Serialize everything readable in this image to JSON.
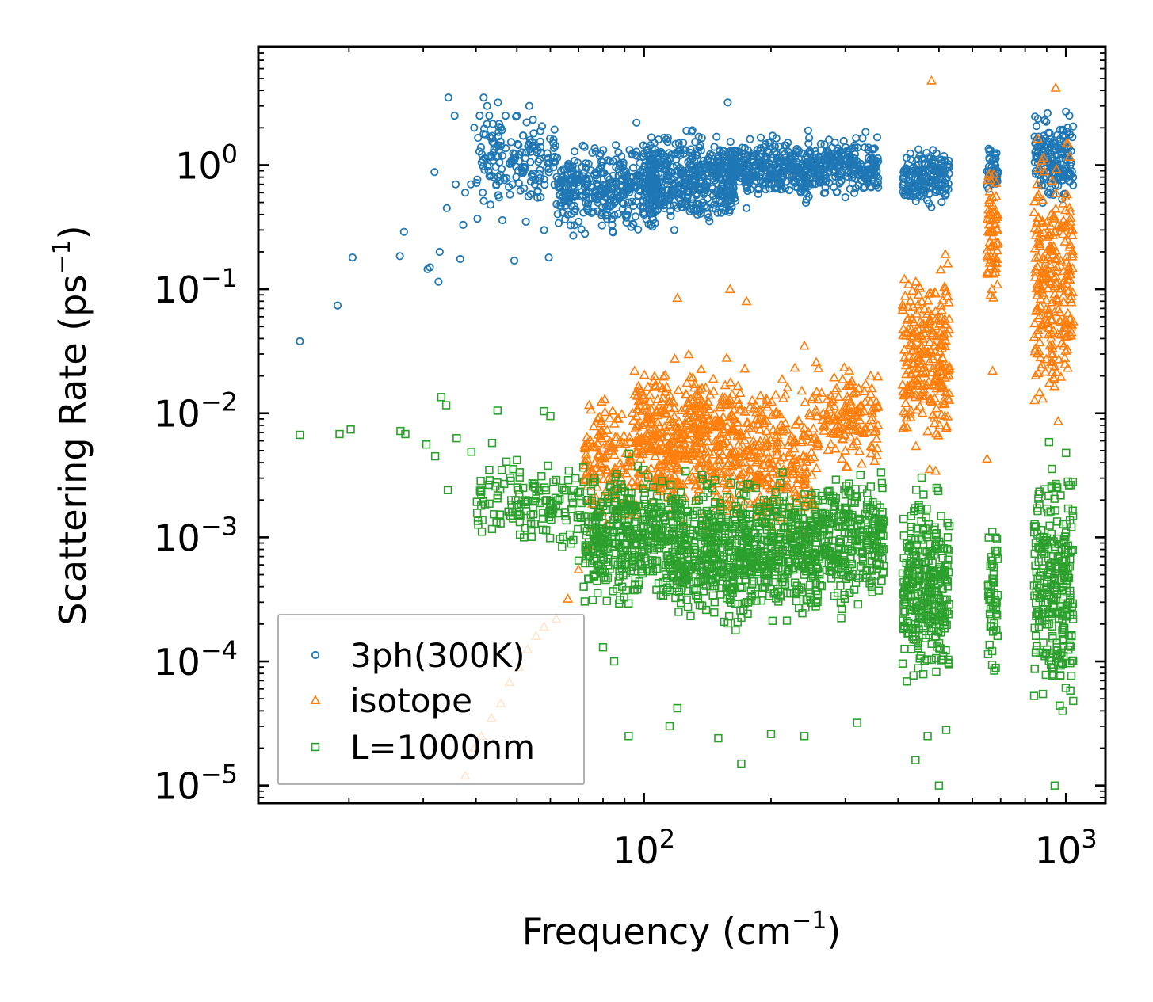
{
  "chart_data": {
    "type": "scatter",
    "xscale": "log",
    "yscale": "log",
    "xlabel": "Frequency (cm",
    "xlabel_sup": "−1",
    "xlabel_tail": ")",
    "ylabel": "Scattering Rate (ps",
    "ylabel_sup": "−1",
    "ylabel_tail": ")",
    "xlim": [
      12.2,
      1240
    ],
    "ylim": [
      7.2e-06,
      9.0
    ],
    "x_ticks": [
      {
        "value": 100,
        "base": "10",
        "exp": "2"
      },
      {
        "value": 1000,
        "base": "10",
        "exp": "3"
      }
    ],
    "y_ticks": [
      {
        "value": 1,
        "base": "10",
        "exp": "0"
      },
      {
        "value": 0.1,
        "base": "10",
        "exp": "−1"
      },
      {
        "value": 0.01,
        "base": "10",
        "exp": "−2"
      },
      {
        "value": 0.001,
        "base": "10",
        "exp": "−3"
      },
      {
        "value": 0.0001,
        "base": "10",
        "exp": "−4"
      },
      {
        "value": 1e-05,
        "base": "10",
        "exp": "−5"
      }
    ],
    "legend_position": "lower-left",
    "series": [
      {
        "name": "3ph(300K)",
        "marker": "circle",
        "color": "#1f77b4",
        "points": [
          [
            15.3,
            0.038
          ],
          [
            18.8,
            0.074
          ],
          [
            20.4,
            0.18
          ],
          [
            26.4,
            0.185
          ],
          [
            27.0,
            0.29
          ],
          [
            30.7,
            0.145
          ],
          [
            31.1,
            0.15
          ],
          [
            31.9,
            0.88
          ],
          [
            32.6,
            0.115
          ],
          [
            32.8,
            0.2
          ],
          [
            34.1,
            0.45
          ],
          [
            34.4,
            3.5
          ],
          [
            35.6,
            2.5
          ],
          [
            35.8,
            0.7
          ],
          [
            36.7,
            0.175
          ],
          [
            37.3,
            0.33
          ],
          [
            37.7,
            0.6
          ],
          [
            38.9,
            0.7
          ],
          [
            39.6,
            2.0
          ],
          [
            40.3,
            0.37
          ],
          [
            40.8,
            2.5
          ],
          [
            41.5,
            0.6
          ],
          [
            41.7,
            3.5
          ],
          [
            42.5,
            3.0
          ],
          [
            43.0,
            2.5
          ],
          [
            43.3,
            0.48
          ],
          [
            44.7,
            0.7
          ],
          [
            45.1,
            3.2
          ],
          [
            45.8,
            2.0
          ],
          [
            46.2,
            0.36
          ],
          [
            47.0,
            2.5
          ],
          [
            48.8,
            0.7
          ],
          [
            49.3,
            0.17
          ],
          [
            50.0,
            2.5
          ],
          [
            52.5,
            0.35
          ],
          [
            53.5,
            3.0
          ],
          [
            55.1,
            0.7
          ],
          [
            56.4,
            0.75
          ],
          [
            58.0,
            0.3
          ],
          [
            59.5,
            0.18
          ],
          [
            61.0,
            1.5
          ],
          [
            63.5,
            0.5
          ],
          [
            66.0,
            0.4
          ],
          [
            68.0,
            0.27
          ],
          [
            70.0,
            0.35
          ],
          [
            72.5,
            0.28
          ],
          [
            96.0,
            2.2
          ],
          [
            118.0,
            0.3
          ],
          [
            131.0,
            0.45
          ],
          [
            145.5,
            0.45
          ],
          [
            158.0,
            3.2
          ],
          [
            175.0,
            0.45
          ],
          [
            192.0,
            0.95
          ],
          [
            245.0,
            1.9
          ],
          [
            300.0,
            0.55
          ],
          [
            335.0,
            1.85
          ],
          [
            500.0,
            0.65
          ],
          [
            680.0,
            1.2
          ],
          [
            1000.0,
            2.7
          ]
        ],
        "regions": [
          {
            "x": [
              40,
              62
            ],
            "y": [
              0.4,
              3.0
            ],
            "n": 160
          },
          {
            "x": [
              62,
              110
            ],
            "y": [
              0.25,
              1.8
            ],
            "n": 380
          },
          {
            "x": [
              100,
              165
            ],
            "y": [
              0.25,
              2.2
            ],
            "n": 480
          },
          {
            "x": [
              160,
              260
            ],
            "y": [
              0.45,
              2.0
            ],
            "n": 360
          },
          {
            "x": [
              260,
              360
            ],
            "y": [
              0.5,
              1.9
            ],
            "n": 220
          },
          {
            "x": [
              410,
              530
            ],
            "y": [
              0.42,
              1.6
            ],
            "n": 180
          },
          {
            "x": [
              650,
              690
            ],
            "y": [
              0.55,
              1.6
            ],
            "n": 45
          },
          {
            "x": [
              840,
              1040
            ],
            "y": [
              0.4,
              3.0
            ],
            "n": 170
          }
        ]
      },
      {
        "name": "isotope",
        "marker": "triangle",
        "color": "#ff7f0e",
        "points": [
          [
            37.7,
            1.2e-05
          ],
          [
            39.6,
            2e-05
          ],
          [
            41.2,
            2.5e-05
          ],
          [
            43.5,
            3.5e-05
          ],
          [
            45.8,
            4.6e-05
          ],
          [
            48.0,
            6.8e-05
          ],
          [
            50.5,
            9e-05
          ],
          [
            53.0,
            0.000125
          ],
          [
            55.5,
            0.00016
          ],
          [
            58.0,
            0.00019
          ],
          [
            62.0,
            0.00022
          ],
          [
            66.0,
            0.00032
          ],
          [
            70.0,
            0.00055
          ],
          [
            74.0,
            0.00085
          ],
          [
            78.0,
            0.0018
          ],
          [
            82.0,
            0.0035
          ],
          [
            87.0,
            0.009
          ],
          [
            95.0,
            0.022
          ],
          [
            120.0,
            0.085
          ],
          [
            160.0,
            0.1
          ],
          [
            175.0,
            0.08
          ],
          [
            240.0,
            0.035
          ],
          [
            250.0,
            0.013
          ],
          [
            300.0,
            0.005
          ],
          [
            480.0,
            4.8
          ],
          [
            650.0,
            0.0043
          ],
          [
            670.0,
            0.022
          ],
          [
            945.0,
            4.2
          ],
          [
            1030.0,
            0.05
          ]
        ],
        "regions": [
          {
            "x": [
              72,
              96
            ],
            "y": [
              0.0008,
              0.02
            ],
            "n": 150
          },
          {
            "x": [
              96,
              170
            ],
            "y": [
              0.0009,
              0.04
            ],
            "n": 520
          },
          {
            "x": [
              170,
              255
            ],
            "y": [
              0.0006,
              0.03
            ],
            "n": 260
          },
          {
            "x": [
              255,
              360
            ],
            "y": [
              0.003,
              0.03
            ],
            "n": 150
          },
          {
            "x": [
              410,
              530
            ],
            "y": [
              0.003,
              0.25
            ],
            "n": 260
          },
          {
            "x": [
              650,
              690
            ],
            "y": [
              0.05,
              1.4
            ],
            "n": 70
          },
          {
            "x": [
              840,
              1040
            ],
            "y": [
              0.005,
              2.8
            ],
            "n": 260
          }
        ]
      },
      {
        "name": "L=1000nm",
        "marker": "square",
        "color": "#2ca02c",
        "points": [
          [
            15.3,
            0.0067
          ],
          [
            19.0,
            0.0068
          ],
          [
            20.2,
            0.0074
          ],
          [
            26.5,
            0.0072
          ],
          [
            27.2,
            0.0068
          ],
          [
            30.5,
            0.0056
          ],
          [
            32.0,
            0.0045
          ],
          [
            33.1,
            0.0135
          ],
          [
            34.0,
            0.0116
          ],
          [
            34.3,
            0.0024
          ],
          [
            36.0,
            0.0063
          ],
          [
            39.0,
            0.0049
          ],
          [
            43.0,
            0.0035
          ],
          [
            45.0,
            0.0105
          ],
          [
            50.0,
            0.0042
          ],
          [
            55.0,
            0.0027
          ],
          [
            58.0,
            0.0104
          ],
          [
            60.0,
            0.0095
          ],
          [
            62.0,
            0.0029
          ],
          [
            65.0,
            0.0016
          ],
          [
            68.0,
            0.00095
          ],
          [
            70.0,
            0.00065
          ],
          [
            72.0,
            0.0004
          ],
          [
            80.0,
            0.00013
          ],
          [
            85.0,
            0.0001
          ],
          [
            92.0,
            2.5e-05
          ],
          [
            115.0,
            3e-05
          ],
          [
            120.0,
            4.2e-05
          ],
          [
            150.0,
            2.4e-05
          ],
          [
            170.0,
            1.5e-05
          ],
          [
            200.0,
            2.6e-05
          ],
          [
            240.0,
            2.5e-05
          ],
          [
            320.0,
            3.2e-05
          ],
          [
            440.0,
            1.6e-05
          ],
          [
            470.0,
            2.5e-05
          ],
          [
            500.0,
            1e-05
          ],
          [
            520.0,
            2.8e-05
          ],
          [
            940.0,
            1e-05
          ],
          [
            1040.0,
            4.8e-05
          ]
        ],
        "regions": [
          {
            "x": [
              40,
              72
            ],
            "y": [
              0.0006,
              0.006
            ],
            "n": 140
          },
          {
            "x": [
              72,
              120
            ],
            "y": [
              0.0002,
              0.005
            ],
            "n": 420
          },
          {
            "x": [
              120,
              260
            ],
            "y": [
              0.00015,
              0.004
            ],
            "n": 720
          },
          {
            "x": [
              260,
              370
            ],
            "y": [
              0.0002,
              0.005
            ],
            "n": 280
          },
          {
            "x": [
              410,
              530
            ],
            "y": [
              4e-05,
              0.004
            ],
            "n": 300
          },
          {
            "x": [
              650,
              690
            ],
            "y": [
              6e-05,
              0.002
            ],
            "n": 60
          },
          {
            "x": [
              840,
              1040
            ],
            "y": [
              2e-05,
              0.008
            ],
            "n": 280
          }
        ]
      }
    ]
  }
}
